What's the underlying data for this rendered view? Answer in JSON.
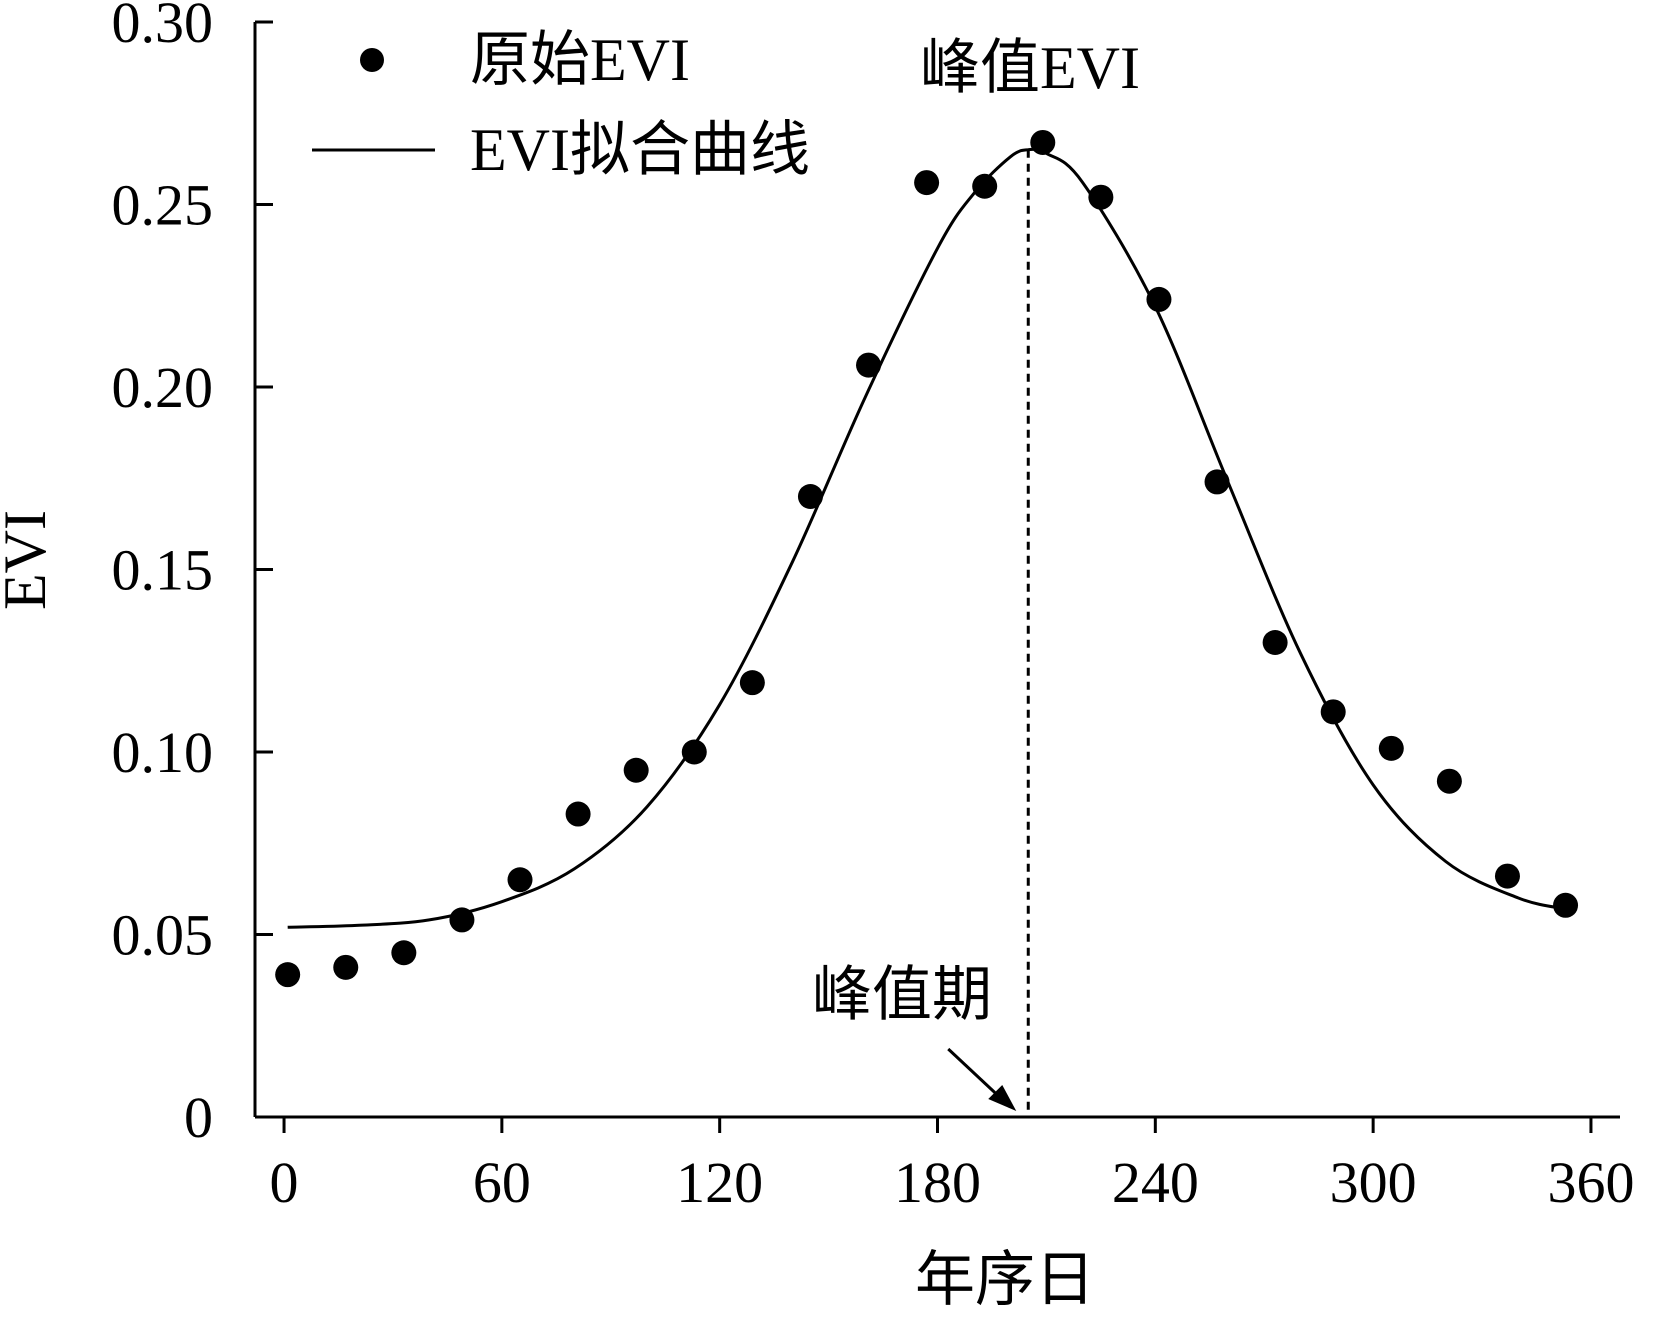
{
  "chart_data": {
    "type": "scatter",
    "xlabel": "年序日",
    "ylabel": "EVI",
    "xlim": [
      -8,
      368
    ],
    "ylim": [
      0,
      0.3
    ],
    "xticks": [
      "0",
      "60",
      "120",
      "180",
      "240",
      "300",
      "360"
    ],
    "yticks": [
      "0",
      "0.05",
      "0.10",
      "0.15",
      "0.20",
      "0.25",
      "0.30"
    ],
    "grid": false,
    "legend_position": "top-left",
    "series": [
      {
        "name": "原始EVI",
        "kind": "points",
        "x": [
          1,
          17,
          33,
          49,
          65,
          81,
          97,
          113,
          129,
          145,
          161,
          177,
          193,
          209,
          225,
          241,
          257,
          273,
          289,
          305,
          321,
          337,
          353
        ],
        "y": [
          0.039,
          0.041,
          0.045,
          0.054,
          0.065,
          0.083,
          0.095,
          0.1,
          0.119,
          0.17,
          0.206,
          0.256,
          0.255,
          0.267,
          0.252,
          0.224,
          0.174,
          0.13,
          0.111,
          0.101,
          0.092,
          0.066,
          0.058
        ]
      },
      {
        "name": "EVI拟合曲线",
        "kind": "line",
        "x": [
          1,
          20,
          40,
          60,
          80,
          100,
          120,
          140,
          160,
          180,
          190,
          200,
          205,
          210,
          220,
          240,
          260,
          280,
          300,
          320,
          340,
          353
        ],
        "y": [
          0.052,
          0.0525,
          0.054,
          0.059,
          0.068,
          0.085,
          0.113,
          0.152,
          0.197,
          0.238,
          0.253,
          0.263,
          0.265,
          0.264,
          0.256,
          0.222,
          0.174,
          0.127,
          0.091,
          0.07,
          0.06,
          0.057
        ]
      }
    ],
    "annotations": {
      "peak_label": "峰值EVI",
      "peak_period_label": "峰值期",
      "peak_x": 205
    }
  }
}
